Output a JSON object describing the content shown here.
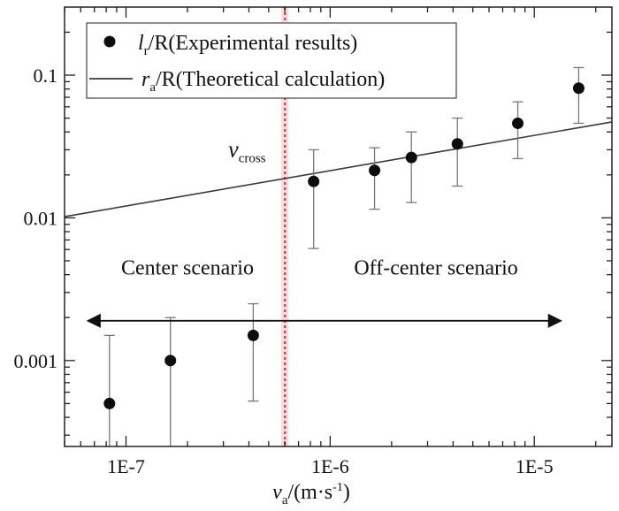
{
  "chart_data": {
    "type": "scatter",
    "xscale": "log",
    "yscale": "log",
    "xlim": [
      5e-08,
      2.4e-05
    ],
    "ylim": [
      0.00025,
      0.3
    ],
    "xticks": [
      {
        "value": 1e-07,
        "label": "1E-7"
      },
      {
        "value": 1e-06,
        "label": "1E-6"
      },
      {
        "value": 1e-05,
        "label": "1E-5"
      }
    ],
    "yticks": [
      {
        "value": 0.001,
        "label": "0.001"
      },
      {
        "value": 0.01,
        "label": "0.01"
      },
      {
        "value": 0.1,
        "label": "0.1"
      }
    ],
    "xlabel": {
      "main": "v",
      "sub": "a",
      "rest": "/(m·s",
      "sup": "-1",
      "close": ")"
    },
    "series": [
      {
        "name": "Experimental results",
        "legend": {
          "main": "l",
          "sub": "r",
          "rest": "/R(Experimental results)"
        },
        "kind": "points_with_errorbars",
        "points": [
          {
            "x": 8.3e-08,
            "y": 0.0005,
            "ylo": 0.0002,
            "yhi": 0.0015
          },
          {
            "x": 1.65e-07,
            "y": 0.001,
            "ylo": 0.0002,
            "yhi": 0.002
          },
          {
            "x": 4.2e-07,
            "y": 0.0015,
            "ylo": 0.00052,
            "yhi": 0.0025
          },
          {
            "x": 8.3e-07,
            "y": 0.018,
            "ylo": 0.0061,
            "yhi": 0.03
          },
          {
            "x": 1.65e-06,
            "y": 0.0215,
            "ylo": 0.0115,
            "yhi": 0.031
          },
          {
            "x": 2.5e-06,
            "y": 0.0265,
            "ylo": 0.0128,
            "yhi": 0.04
          },
          {
            "x": 4.2e-06,
            "y": 0.033,
            "ylo": 0.0167,
            "yhi": 0.05
          },
          {
            "x": 8.3e-06,
            "y": 0.046,
            "ylo": 0.026,
            "yhi": 0.065
          },
          {
            "x": 1.65e-05,
            "y": 0.081,
            "ylo": 0.046,
            "yhi": 0.113
          }
        ]
      },
      {
        "name": "Theoretical calculation",
        "legend": {
          "main": "r",
          "sub": "a",
          "rest": "/R(Theoretical calculation)"
        },
        "kind": "line",
        "x": [
          5e-08,
          2.4e-05
        ],
        "y": [
          0.0102,
          0.047
        ]
      }
    ],
    "crossover": {
      "x": 6e-07,
      "label_main": "v",
      "label_sub": "cross",
      "color": "#e23b3b"
    },
    "annotations": [
      {
        "id": "center",
        "text": "Center scenario",
        "x": 2e-07,
        "y": 0.0045
      },
      {
        "id": "offcenter",
        "text": "Off-center scenario",
        "x": 3.3e-06,
        "y": 0.0045
      }
    ],
    "arrow": {
      "x_from": 6.5e-08,
      "x_to": 1.35e-05,
      "y": 0.0019
    },
    "legend_position": "top-left",
    "colors": {
      "marker": "#0d0d0d",
      "line": "#3a3a3a",
      "errorbar": "#777777",
      "axis": "#222222"
    }
  }
}
